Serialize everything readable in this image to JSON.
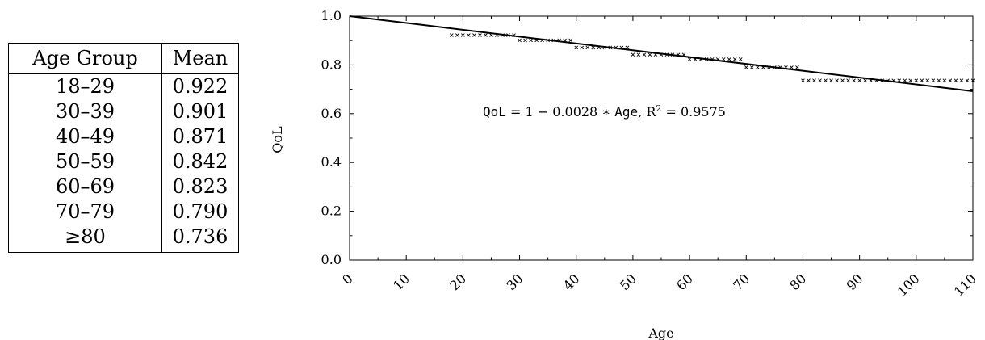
{
  "table": {
    "headers": [
      "Age Group",
      "Mean"
    ],
    "rows": [
      [
        "18–29",
        "0.922"
      ],
      [
        "30–39",
        "0.901"
      ],
      [
        "40–49",
        "0.871"
      ],
      [
        "50–59",
        "0.842"
      ],
      [
        "60–69",
        "0.823"
      ],
      [
        "70–79",
        "0.790"
      ],
      [
        "≥80",
        "0.736"
      ]
    ]
  },
  "chart_data": {
    "type": "scatter",
    "xlabel": "Age",
    "ylabel": "QoL",
    "xlim": [
      0,
      110
    ],
    "ylim": [
      0,
      1
    ],
    "x_ticks": [
      "0",
      "10",
      "20",
      "30",
      "40",
      "50",
      "60",
      "70",
      "80",
      "90",
      "100",
      "110"
    ],
    "y_ticks": [
      "0.0",
      "0.2",
      "0.4",
      "0.6",
      "0.8",
      "1.0"
    ],
    "marker": "x",
    "groups": [
      {
        "x_from": 18,
        "x_to": 29,
        "y": 0.922
      },
      {
        "x_from": 30,
        "x_to": 39,
        "y": 0.901
      },
      {
        "x_from": 40,
        "x_to": 49,
        "y": 0.871
      },
      {
        "x_from": 50,
        "x_to": 59,
        "y": 0.842
      },
      {
        "x_from": 60,
        "x_to": 69,
        "y": 0.823
      },
      {
        "x_from": 70,
        "x_to": 79,
        "y": 0.79
      },
      {
        "x_from": 80,
        "x_to": 110,
        "y": 0.736
      }
    ],
    "fit_line": {
      "intercept": 1,
      "slope": -0.0028
    },
    "annotation": {
      "var_left": "QoL",
      "eq_mid": " = 1 − 0.0028 ∗ ",
      "var_right": "Age",
      "r2_text": ", R",
      "r2_sup": "2",
      "r2_value": " = 0.9575"
    },
    "grid": false
  }
}
